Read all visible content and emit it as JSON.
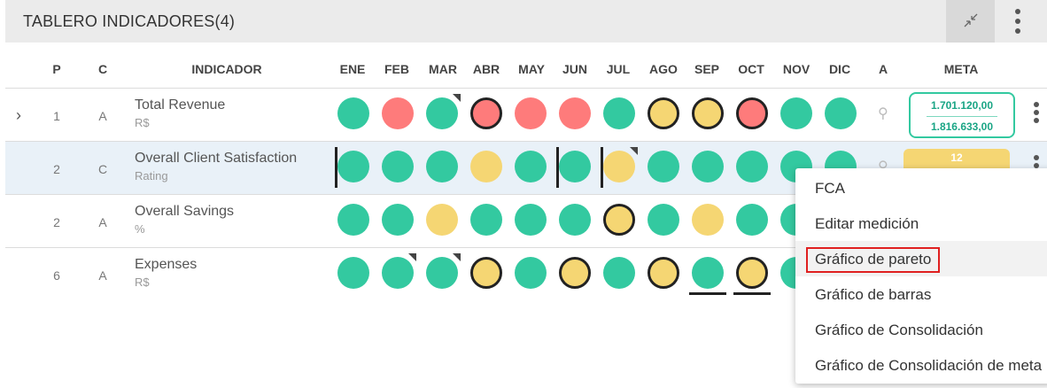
{
  "header": {
    "title": "TABLERO INDICADORES(4)"
  },
  "icons": {
    "collapse": "collapse-arrows-icon",
    "more": "more-vertical-icon",
    "expand": "chevron-right-icon",
    "attachment": "paperclip-icon"
  },
  "columns": {
    "p": "P",
    "c": "C",
    "indicador": "INDICADOR",
    "a": "A",
    "meta": "META",
    "months": [
      "ENE",
      "FEB",
      "MAR",
      "ABR",
      "MAY",
      "JUN",
      "JUL",
      "AGO",
      "SEP",
      "OCT",
      "NOV",
      "DIC"
    ]
  },
  "status_colors": {
    "green": "#33c9a0",
    "red": "#fe7b7b",
    "yellow": "#f5d673"
  },
  "rows": [
    {
      "p": "1",
      "c": "A",
      "name": "Total Revenue",
      "unit": "R$",
      "meta": [
        "1.701.120,00",
        "1.816.633,00"
      ]
    },
    {
      "p": "2",
      "c": "C",
      "name": "Overall Client Satisfaction",
      "unit": "Rating",
      "meta": [
        "12"
      ]
    },
    {
      "p": "2",
      "c": "A",
      "name": "Overall Savings",
      "unit": "%"
    },
    {
      "p": "6",
      "c": "A",
      "name": "Expenses",
      "unit": "R$"
    }
  ],
  "context_menu": {
    "items": [
      "FCA",
      "Editar medición",
      "Gráfico de pareto",
      "Gráfico de barras",
      "Gráfico de Consolidación",
      "Gráfico de Consolidación de meta"
    ]
  }
}
